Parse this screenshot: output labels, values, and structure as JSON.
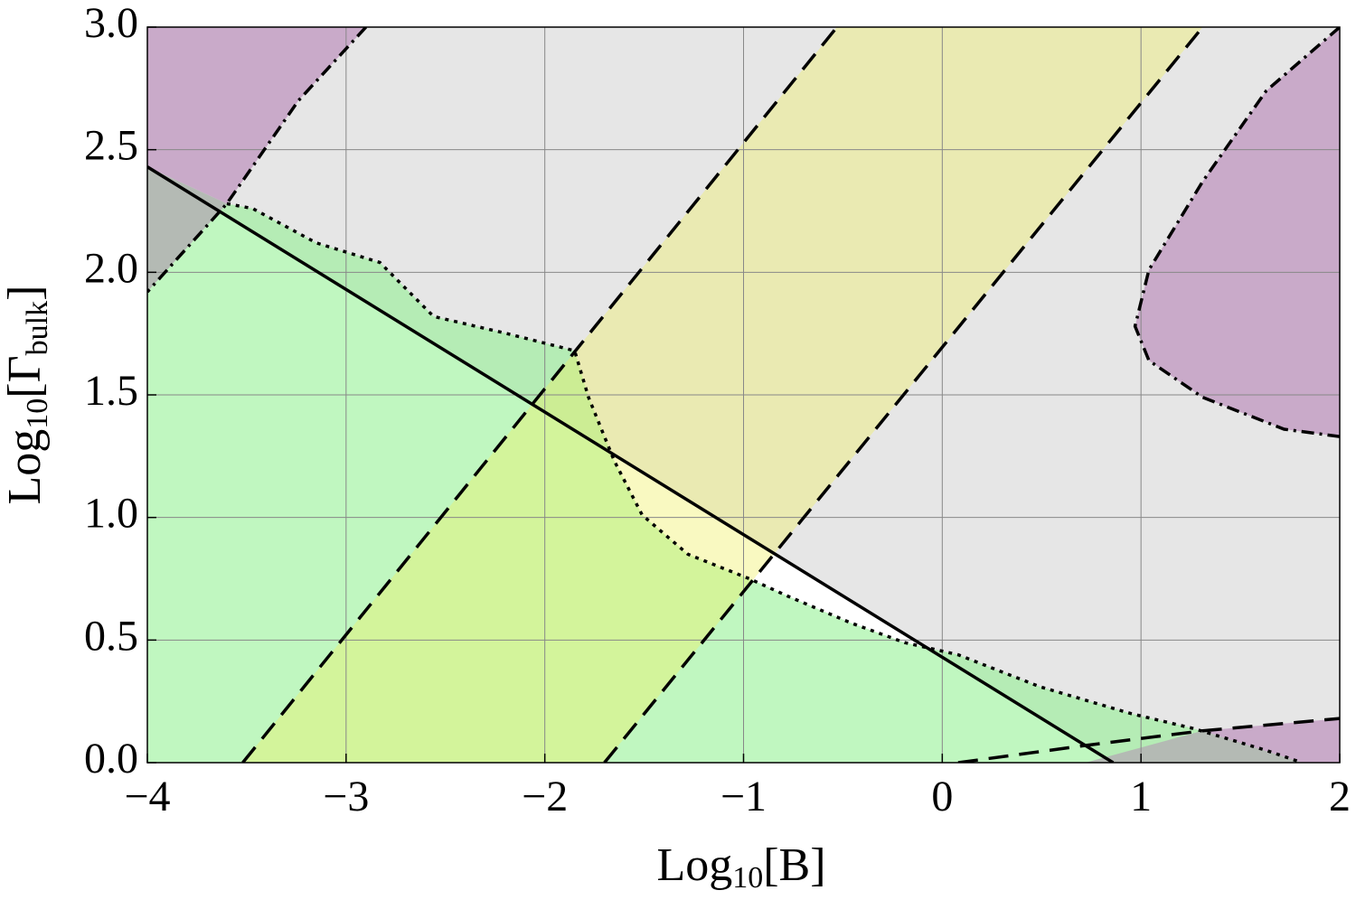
{
  "chart_data": {
    "type": "region",
    "xlabel": [
      "Log",
      "10",
      "[B]"
    ],
    "ylabel": [
      "Log",
      "10",
      "[Γ",
      "bulk",
      "]"
    ],
    "xlim": [
      -4,
      2
    ],
    "ylim": [
      0,
      3
    ],
    "xticks": [
      {
        "value": -4,
        "label": "−4"
      },
      {
        "value": -3,
        "label": "−3"
      },
      {
        "value": -2,
        "label": "−2"
      },
      {
        "value": -1,
        "label": "−1"
      },
      0,
      1,
      2
    ],
    "yticks": [
      {
        "value": 0,
        "label": "0.0"
      },
      {
        "value": 0.5,
        "label": "0.5"
      },
      {
        "value": 1,
        "label": "1.0"
      },
      {
        "value": 1.5,
        "label": "1.5"
      },
      {
        "value": 2,
        "label": "2.0"
      },
      {
        "value": 2.5,
        "label": "2.5"
      },
      {
        "value": 3,
        "label": "3.0"
      }
    ],
    "grid": true,
    "background": "#ffffff",
    "regions": [
      {
        "color": "#e6e6e6",
        "x": [
          -4,
          2,
          2,
          0.86,
          -4
        ],
        "y": [
          3,
          3,
          0,
          0,
          2.43
        ]
      },
      {
        "color": "#c9aac9",
        "x": [
          -4,
          -2.9,
          -3.24,
          -3.6,
          -4
        ],
        "y": [
          3,
          3,
          2.7,
          2.28,
          2.43
        ]
      },
      {
        "color": "#b4bab4",
        "x": [
          -4,
          -3.6,
          -4
        ],
        "y": [
          2.43,
          2.28,
          1.92
        ]
      },
      {
        "color": "rgba(140,240,140,0.55)",
        "x": [
          -4,
          -3.6,
          -3.47,
          -3.15,
          -2.83,
          -2.56,
          -2.19,
          -1.85,
          -1.78,
          -1.65,
          -1.51,
          -1.28,
          -0.97,
          -0.78,
          -0.46,
          -0.19,
          0.08,
          0.49,
          0.95,
          1.26,
          1.63,
          1.81,
          -4
        ],
        "y": [
          1.92,
          2.28,
          2.26,
          2.12,
          2.04,
          1.82,
          1.75,
          1.68,
          1.49,
          1.23,
          1.01,
          0.85,
          0.75,
          0.68,
          0.57,
          0.49,
          0.44,
          0.31,
          0.2,
          0.14,
          0.05,
          0,
          0
        ]
      },
      {
        "color": "rgba(240,240,100,0.4)",
        "x": [
          -3.52,
          -0.53,
          1.31,
          -1.7
        ],
        "y": [
          0,
          3,
          3,
          0
        ]
      },
      {
        "color": "#c9aac9",
        "x": [
          2,
          1.63,
          1.31,
          1.04,
          0.97,
          1.04,
          1.31,
          1.72,
          2
        ],
        "y": [
          3,
          2.74,
          2.37,
          2.01,
          1.78,
          1.64,
          1.49,
          1.36,
          1.33
        ]
      },
      {
        "color": "#c9aac9",
        "x": [
          1.31,
          2,
          2,
          1.81
        ],
        "y": [
          0.13,
          0.18,
          0,
          0
        ]
      },
      {
        "color": "#b4bab4",
        "x": [
          0.72,
          1.31,
          1.81
        ],
        "y": [
          0,
          0.13,
          0
        ]
      }
    ],
    "lines": [
      {
        "style": "solid",
        "color": "#000000",
        "x": [
          -4,
          0.86
        ],
        "y": [
          2.43,
          0
        ]
      },
      {
        "style": "dashed",
        "color": "#000000",
        "x": [
          -3.52,
          -0.53
        ],
        "y": [
          0,
          3
        ]
      },
      {
        "style": "dashed",
        "color": "#000000",
        "x": [
          -1.7,
          1.31
        ],
        "y": [
          0,
          3
        ]
      },
      {
        "style": "dashed",
        "color": "#000000",
        "x": [
          0.08,
          0.72,
          1.31,
          2
        ],
        "y": [
          0,
          0.07,
          0.13,
          0.18
        ]
      },
      {
        "style": "dotted",
        "color": "#000000",
        "x": [
          -3.6,
          -3.47,
          -3.15,
          -2.83,
          -2.56,
          -2.19,
          -1.85,
          -1.78,
          -1.65,
          -1.51,
          -1.28,
          -0.97,
          -0.78,
          -0.46,
          -0.19,
          0.08,
          0.49,
          0.95,
          1.26,
          1.63,
          1.81
        ],
        "y": [
          2.28,
          2.26,
          2.12,
          2.04,
          1.82,
          1.75,
          1.68,
          1.49,
          1.23,
          1.01,
          0.85,
          0.75,
          0.68,
          0.57,
          0.49,
          0.44,
          0.31,
          0.2,
          0.14,
          0.05,
          0
        ]
      },
      {
        "style": "dashdot",
        "color": "#000000",
        "x": [
          -2.9,
          -3.24,
          -3.6,
          -4
        ],
        "y": [
          3,
          2.7,
          2.28,
          1.92
        ]
      },
      {
        "style": "dashdot",
        "color": "#000000",
        "x": [
          2,
          1.63,
          1.31,
          1.04,
          0.97,
          1.04,
          1.31,
          1.72,
          2
        ],
        "y": [
          3,
          2.74,
          2.37,
          2.01,
          1.78,
          1.64,
          1.49,
          1.36,
          1.33
        ]
      }
    ]
  }
}
